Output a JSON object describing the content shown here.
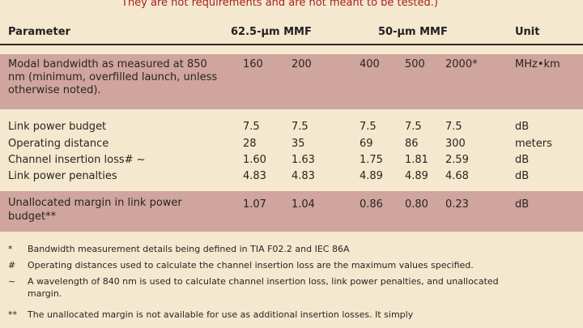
{
  "note": "They are not requirements and are not meant to be tested.)",
  "header": {
    "parameter": "Parameter",
    "mmf62": "62.5-µm MMF",
    "mmf50": "50-µm MMF",
    "unit": "Unit"
  },
  "modal": {
    "label": "Modal bandwidth as measured at 850 nm (minimum, overfilled launch, unless otherwise noted).",
    "v1": "160",
    "v2": "200",
    "v3": "400",
    "v4": "500",
    "v5": "2000*",
    "unit": "MHz•km"
  },
  "rows": [
    {
      "label": "Link power budget",
      "v1": "7.5",
      "v2": "7.5",
      "v3": "7.5",
      "v4": "7.5",
      "v5": "7.5",
      "unit": "dB"
    },
    {
      "label": "Operating distance",
      "v1": "28",
      "v2": "35",
      "v3": "69",
      "v4": "86",
      "v5": "300",
      "unit": "meters"
    },
    {
      "label": "Channel insertion loss# ~",
      "v1": "1.60",
      "v2": "1.63",
      "v3": "1.75",
      "v4": "1.81",
      "v5": "2.59",
      "unit": "dB"
    },
    {
      "label": "Link power penalties",
      "v1": "4.83",
      "v2": "4.83",
      "v3": "4.89",
      "v4": "4.89",
      "v5": "4.68",
      "unit": "dB"
    }
  ],
  "margin": {
    "label": "Unallocated margin in link power budget**",
    "v1": "1.07",
    "v2": "1.04",
    "v3": "0.86",
    "v4": "0.80",
    "v5": "0.23",
    "unit": "dB"
  },
  "footnotes": [
    {
      "mark": "*",
      "text": "Bandwidth measurement details being defined in TIA F02.2 and IEC 86A"
    },
    {
      "mark": "#",
      "text": "Operating distances used to calculate the channel insertion loss are the maximum values specified."
    },
    {
      "mark": "~",
      "text": "A wavelength of 840 nm is used to calculate channel insertion loss, link power penalties, and unallocated margin."
    },
    {
      "mark": "**",
      "text": "The unallocated margin is not available for use as additional insertion losses. It simply"
    }
  ]
}
